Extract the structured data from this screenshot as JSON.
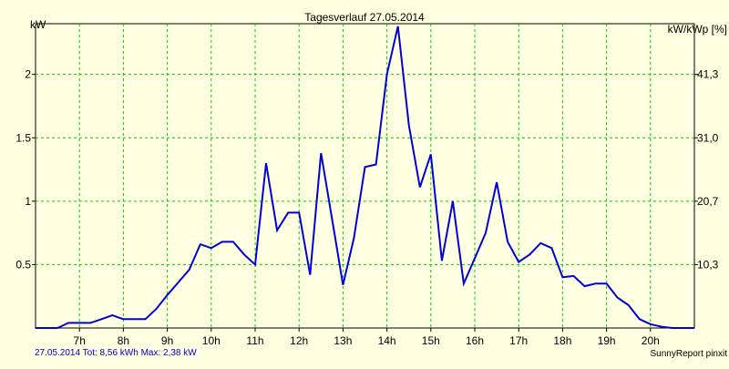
{
  "chart_data": {
    "type": "line",
    "title": "Tagesverlauf 27.05.2014",
    "ylabel_left": "kW",
    "ylabel_right": "kW/kWp [%]",
    "xlim": [
      6.0,
      21.0
    ],
    "ylim": [
      0,
      2.4
    ],
    "x_ticks": [
      {
        "value": 7,
        "label": "7h"
      },
      {
        "value": 8,
        "label": "8h"
      },
      {
        "value": 9,
        "label": "9h"
      },
      {
        "value": 10,
        "label": "10h"
      },
      {
        "value": 11,
        "label": "11h"
      },
      {
        "value": 12,
        "label": "12h"
      },
      {
        "value": 13,
        "label": "13h"
      },
      {
        "value": 14,
        "label": "14h"
      },
      {
        "value": 15,
        "label": "15h"
      },
      {
        "value": 16,
        "label": "16h"
      },
      {
        "value": 17,
        "label": "17h"
      },
      {
        "value": 18,
        "label": "18h"
      },
      {
        "value": 19,
        "label": "19h"
      },
      {
        "value": 20,
        "label": "20h"
      }
    ],
    "y_ticks_left": [
      {
        "value": 0.5,
        "label": "0.5"
      },
      {
        "value": 1.0,
        "label": "1"
      },
      {
        "value": 1.5,
        "label": "1.5"
      },
      {
        "value": 2.0,
        "label": "2"
      }
    ],
    "y_ticks_right": [
      {
        "value": 0.5,
        "label": "10,3"
      },
      {
        "value": 1.0,
        "label": "20,7"
      },
      {
        "value": 1.5,
        "label": "31,0"
      },
      {
        "value": 2.0,
        "label": "41,3"
      }
    ],
    "grid": true,
    "line_color": "#0000dd",
    "grid_color": "#00cc00",
    "series": [
      {
        "x": [
          6.0,
          6.5,
          6.75,
          7.0,
          7.25,
          7.5,
          7.75,
          8.0,
          8.25,
          8.5,
          8.75,
          9.0,
          9.25,
          9.5,
          9.75,
          10.0,
          10.25,
          10.5,
          10.75,
          11.0,
          11.25,
          11.5,
          11.75,
          12.0,
          12.25,
          12.5,
          12.75,
          13.0,
          13.25,
          13.5,
          13.75,
          14.0,
          14.25,
          14.5,
          14.75,
          15.0,
          15.25,
          15.5,
          15.75,
          16.0,
          16.25,
          16.5,
          16.75,
          17.0,
          17.25,
          17.5,
          17.75,
          18.0,
          18.25,
          18.5,
          18.75,
          19.0,
          19.25,
          19.5,
          19.75,
          20.0,
          20.25,
          20.5,
          20.75,
          21.0
        ],
        "y": [
          0.0,
          0.0,
          0.04,
          0.04,
          0.04,
          0.07,
          0.1,
          0.07,
          0.07,
          0.07,
          0.15,
          0.26,
          0.36,
          0.46,
          0.66,
          0.63,
          0.68,
          0.68,
          0.58,
          0.5,
          1.3,
          0.77,
          0.91,
          0.91,
          0.42,
          1.38,
          0.86,
          0.34,
          0.71,
          1.27,
          1.29,
          2.0,
          2.38,
          1.6,
          1.11,
          1.37,
          0.53,
          1.0,
          0.35,
          0.55,
          0.75,
          1.15,
          0.68,
          0.52,
          0.58,
          0.67,
          0.63,
          0.4,
          0.41,
          0.33,
          0.35,
          0.35,
          0.24,
          0.18,
          0.07,
          0.03,
          0.01,
          0.0,
          0.0,
          0.0
        ]
      }
    ]
  },
  "footer": {
    "summary": "27.05.2014 Tot: 8,56 kWh Max: 2,38 kW",
    "credit": "SunnyReport pinxit"
  }
}
